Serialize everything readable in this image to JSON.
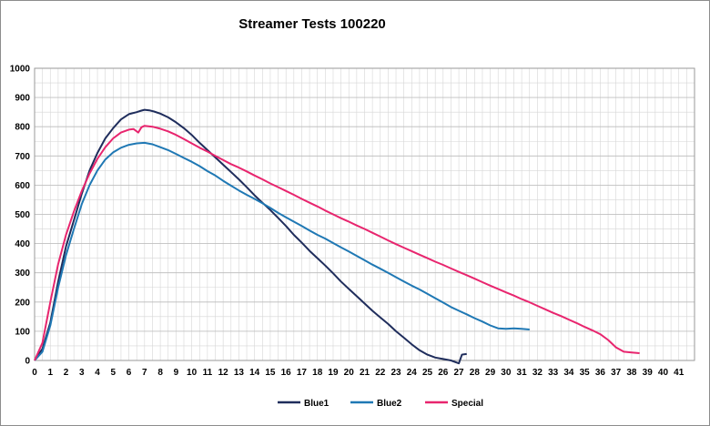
{
  "chart_data": {
    "type": "line",
    "title": "Streamer Tests 100220",
    "xlabel": "",
    "ylabel": "",
    "xlim": [
      0,
      42
    ],
    "ylim": [
      0,
      1000
    ],
    "x_ticks": [
      0,
      1,
      2,
      3,
      4,
      5,
      6,
      7,
      8,
      9,
      10,
      11,
      12,
      13,
      14,
      15,
      16,
      17,
      18,
      19,
      20,
      21,
      22,
      23,
      24,
      25,
      26,
      27,
      28,
      29,
      30,
      31,
      32,
      33,
      34,
      35,
      36,
      37,
      38,
      39,
      40,
      41
    ],
    "y_ticks": [
      0,
      100,
      200,
      300,
      400,
      500,
      600,
      700,
      800,
      900,
      1000
    ],
    "x_minor_step": 0.5,
    "y_minor_step": 50,
    "grid": true,
    "legend_position": "bottom",
    "series": [
      {
        "name": "Blue1",
        "color": "#1f2d5c",
        "points": [
          [
            0,
            0
          ],
          [
            0.5,
            40
          ],
          [
            1,
            130
          ],
          [
            1.5,
            270
          ],
          [
            2,
            390
          ],
          [
            2.5,
            480
          ],
          [
            3,
            570
          ],
          [
            3.5,
            650
          ],
          [
            4,
            710
          ],
          [
            4.5,
            760
          ],
          [
            5,
            795
          ],
          [
            5.5,
            825
          ],
          [
            6,
            843
          ],
          [
            6.5,
            850
          ],
          [
            6.8,
            855
          ],
          [
            7,
            858
          ],
          [
            7.3,
            856
          ],
          [
            7.6,
            852
          ],
          [
            8,
            845
          ],
          [
            8.5,
            832
          ],
          [
            9,
            815
          ],
          [
            9.5,
            795
          ],
          [
            10,
            772
          ],
          [
            10.5,
            745
          ],
          [
            11,
            720
          ],
          [
            11.5,
            695
          ],
          [
            12,
            670
          ],
          [
            12.5,
            645
          ],
          [
            13,
            620
          ],
          [
            13.5,
            593
          ],
          [
            14,
            565
          ],
          [
            14.5,
            540
          ],
          [
            15,
            515
          ],
          [
            15.5,
            488
          ],
          [
            16,
            460
          ],
          [
            16.5,
            430
          ],
          [
            17,
            403
          ],
          [
            17.5,
            375
          ],
          [
            18,
            350
          ],
          [
            18.5,
            325
          ],
          [
            19,
            298
          ],
          [
            19.5,
            270
          ],
          [
            20,
            245
          ],
          [
            20.5,
            220
          ],
          [
            21,
            195
          ],
          [
            21.5,
            170
          ],
          [
            22,
            147
          ],
          [
            22.5,
            125
          ],
          [
            23,
            100
          ],
          [
            23.5,
            78
          ],
          [
            24,
            55
          ],
          [
            24.5,
            35
          ],
          [
            25,
            20
          ],
          [
            25.5,
            10
          ],
          [
            26,
            5
          ],
          [
            26.5,
            0
          ],
          [
            27,
            -10
          ],
          [
            27.2,
            20
          ],
          [
            27.5,
            22
          ]
        ]
      },
      {
        "name": "Blue2",
        "color": "#1f78b4",
        "points": [
          [
            0,
            0
          ],
          [
            0.5,
            30
          ],
          [
            1,
            120
          ],
          [
            1.5,
            250
          ],
          [
            2,
            360
          ],
          [
            2.5,
            450
          ],
          [
            3,
            535
          ],
          [
            3.5,
            600
          ],
          [
            4,
            650
          ],
          [
            4.5,
            688
          ],
          [
            5,
            712
          ],
          [
            5.5,
            728
          ],
          [
            6,
            738
          ],
          [
            6.5,
            743
          ],
          [
            7,
            745
          ],
          [
            7.5,
            740
          ],
          [
            8,
            730
          ],
          [
            8.5,
            720
          ],
          [
            9,
            707
          ],
          [
            9.5,
            693
          ],
          [
            10,
            680
          ],
          [
            10.5,
            665
          ],
          [
            11,
            648
          ],
          [
            11.5,
            633
          ],
          [
            12,
            615
          ],
          [
            12.5,
            598
          ],
          [
            13,
            582
          ],
          [
            13.5,
            567
          ],
          [
            14,
            553
          ],
          [
            14.5,
            538
          ],
          [
            15,
            522
          ],
          [
            15.5,
            505
          ],
          [
            16,
            490
          ],
          [
            16.5,
            475
          ],
          [
            17,
            460
          ],
          [
            17.5,
            445
          ],
          [
            18,
            430
          ],
          [
            18.5,
            417
          ],
          [
            19,
            402
          ],
          [
            19.5,
            387
          ],
          [
            20,
            373
          ],
          [
            20.5,
            358
          ],
          [
            21,
            343
          ],
          [
            21.5,
            328
          ],
          [
            22,
            314
          ],
          [
            22.5,
            300
          ],
          [
            23,
            285
          ],
          [
            23.5,
            270
          ],
          [
            24,
            256
          ],
          [
            24.5,
            243
          ],
          [
            25,
            228
          ],
          [
            25.5,
            213
          ],
          [
            26,
            198
          ],
          [
            26.5,
            183
          ],
          [
            27,
            170
          ],
          [
            27.5,
            158
          ],
          [
            28,
            145
          ],
          [
            28.5,
            133
          ],
          [
            29,
            120
          ],
          [
            29.5,
            110
          ],
          [
            30,
            108
          ],
          [
            30.5,
            110
          ],
          [
            31,
            108
          ],
          [
            31.5,
            106
          ]
        ]
      },
      {
        "name": "Special",
        "color": "#e8256e",
        "points": [
          [
            0,
            0
          ],
          [
            0.5,
            60
          ],
          [
            1,
            200
          ],
          [
            1.5,
            330
          ],
          [
            2,
            430
          ],
          [
            2.5,
            510
          ],
          [
            3,
            580
          ],
          [
            3.5,
            640
          ],
          [
            4,
            690
          ],
          [
            4.5,
            730
          ],
          [
            5,
            760
          ],
          [
            5.5,
            780
          ],
          [
            6,
            790
          ],
          [
            6.3,
            792
          ],
          [
            6.6,
            780
          ],
          [
            6.8,
            798
          ],
          [
            7,
            803
          ],
          [
            7.5,
            800
          ],
          [
            8,
            793
          ],
          [
            8.5,
            784
          ],
          [
            9,
            772
          ],
          [
            9.5,
            758
          ],
          [
            10,
            743
          ],
          [
            10.5,
            728
          ],
          [
            11,
            715
          ],
          [
            11.5,
            700
          ],
          [
            12,
            686
          ],
          [
            12.5,
            672
          ],
          [
            13,
            660
          ],
          [
            13.5,
            647
          ],
          [
            14,
            633
          ],
          [
            14.5,
            620
          ],
          [
            15,
            606
          ],
          [
            15.5,
            593
          ],
          [
            16,
            580
          ],
          [
            16.5,
            567
          ],
          [
            17,
            553
          ],
          [
            17.5,
            540
          ],
          [
            18,
            527
          ],
          [
            18.5,
            513
          ],
          [
            19,
            500
          ],
          [
            19.5,
            487
          ],
          [
            20,
            475
          ],
          [
            20.5,
            462
          ],
          [
            21,
            450
          ],
          [
            21.5,
            437
          ],
          [
            22,
            424
          ],
          [
            22.5,
            411
          ],
          [
            23,
            398
          ],
          [
            23.5,
            386
          ],
          [
            24,
            374
          ],
          [
            24.5,
            362
          ],
          [
            25,
            350
          ],
          [
            25.5,
            338
          ],
          [
            26,
            327
          ],
          [
            26.5,
            315
          ],
          [
            27,
            303
          ],
          [
            27.5,
            292
          ],
          [
            28,
            280
          ],
          [
            28.5,
            268
          ],
          [
            29,
            256
          ],
          [
            29.5,
            245
          ],
          [
            30,
            233
          ],
          [
            30.5,
            222
          ],
          [
            31,
            210
          ],
          [
            31.5,
            199
          ],
          [
            32,
            187
          ],
          [
            32.5,
            175
          ],
          [
            33,
            163
          ],
          [
            33.5,
            152
          ],
          [
            34,
            140
          ],
          [
            34.5,
            128
          ],
          [
            35,
            115
          ],
          [
            35.5,
            103
          ],
          [
            36,
            90
          ],
          [
            36.5,
            70
          ],
          [
            37,
            45
          ],
          [
            37.5,
            30
          ],
          [
            38,
            27
          ],
          [
            38.5,
            25
          ]
        ]
      }
    ]
  }
}
